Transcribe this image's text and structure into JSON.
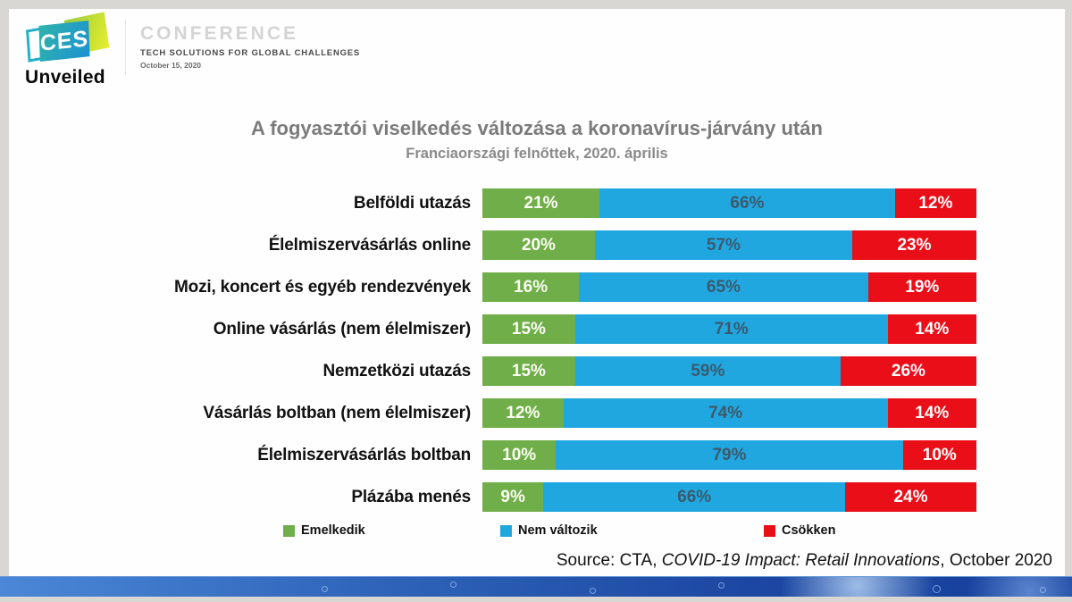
{
  "header": {
    "logo": {
      "ces": "CES",
      "unveiled": "Unveiled"
    },
    "conference": {
      "title": "CONFERENCE",
      "subtitle": "TECH SOLUTIONS FOR GLOBAL CHALLENGES",
      "date": "October 15, 2020"
    }
  },
  "chart_data": {
    "type": "bar",
    "orientation": "horizontal",
    "stacked": true,
    "title": "A fogyasztói viselkedés változása a koronavírus-járvány után",
    "subtitle": "Franciaországi felnőttek, 2020. április",
    "value_suffix": "%",
    "legend_position": "bottom",
    "categories": [
      "Belföldi utazás",
      "Élelmiszervásárlás online",
      "Mozi, koncert és egyéb rendezvények",
      "Online vásárlás (nem élelmiszer)",
      "Nemzetközi utazás",
      "Vásárlás boltban (nem élelmiszer)",
      "Élelmiszervásárlás boltban",
      "Plázába menés"
    ],
    "series": [
      {
        "name": "Emelkedik",
        "key": "emelkedik",
        "color": "#6fae49",
        "text_color": "#fcfdf4",
        "values": [
          21,
          20,
          16,
          15,
          15,
          12,
          10,
          9
        ],
        "labels": [
          "21%",
          "20%",
          "16%",
          "15%",
          "15%",
          "12%",
          "10%",
          "9%"
        ]
      },
      {
        "name": "Nem változik",
        "key": "nem-valtozik",
        "color": "#20a7e0",
        "text_color": "#3b5a6e",
        "values": [
          66,
          57,
          65,
          71,
          59,
          74,
          79,
          66
        ],
        "labels": [
          "66%",
          "57%",
          "65%",
          "71%",
          "59%",
          "74%",
          "79%",
          "66%"
        ]
      },
      {
        "name": "Csökken",
        "key": "csokken",
        "color": "#e90e17",
        "text_color": "#ffffff",
        "values": [
          12,
          23,
          19,
          14,
          26,
          14,
          10,
          24
        ],
        "labels": [
          "12%",
          "23%",
          "19%",
          "14%",
          "26%",
          "14%",
          "10%",
          "24%"
        ]
      }
    ]
  },
  "source": {
    "prefix": "Source: CTA, ",
    "italic": "COVID-19 Impact: Retail Innovations",
    "suffix": ", October 2020"
  }
}
